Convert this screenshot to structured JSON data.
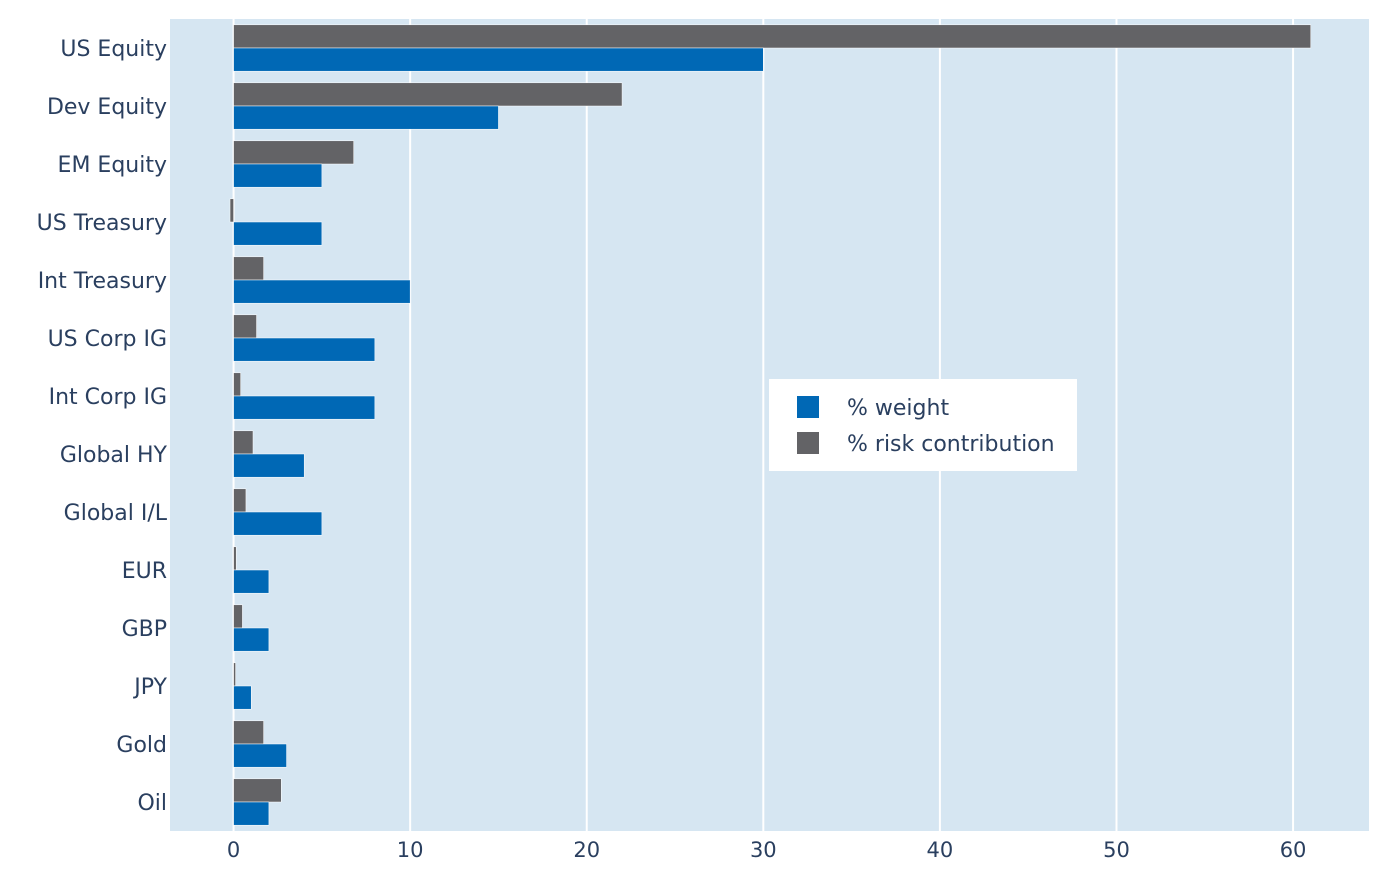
{
  "chart_data": {
    "type": "bar",
    "orientation": "horizontal",
    "categories": [
      "US Equity",
      "Dev Equity",
      "EM Equity",
      "US Treasury",
      "Int Treasury",
      "US Corp IG",
      "Int Corp IG",
      "Global HY",
      "Global I/L",
      "EUR",
      "GBP",
      "JPY",
      "Gold",
      "Oil"
    ],
    "series": [
      {
        "name": "% weight",
        "color": "#0068b5",
        "values": [
          30,
          15,
          5,
          5,
          10,
          8,
          8,
          4,
          5,
          2,
          2,
          1,
          3,
          2
        ]
      },
      {
        "name": "% risk contribution",
        "color": "#636366",
        "values": [
          61,
          22,
          6.8,
          -0.2,
          1.7,
          1.3,
          0.4,
          1.1,
          0.7,
          0.15,
          0.5,
          0.05,
          1.7,
          2.7
        ]
      }
    ],
    "xlim": [
      -3.6,
      64.3
    ],
    "xticks": [
      0,
      10,
      20,
      30,
      40,
      50,
      60
    ],
    "grid": true,
    "legend_position": "center-right",
    "plot_background": "#d6e6f2",
    "grid_color": "#ffffff"
  }
}
